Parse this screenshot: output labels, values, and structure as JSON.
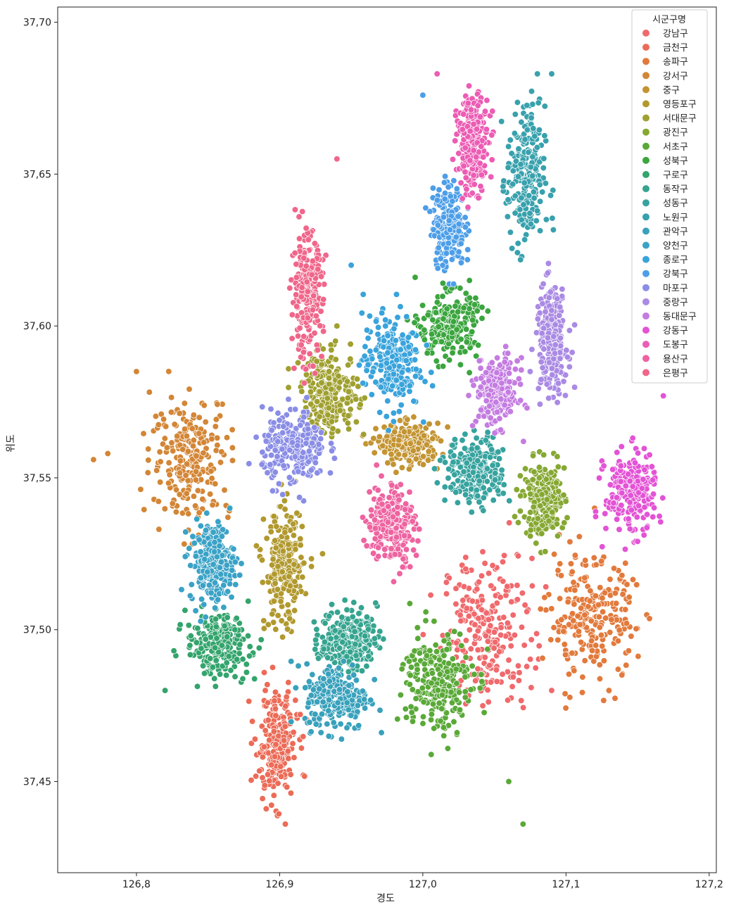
{
  "chart_data": {
    "type": "scatter",
    "title": "",
    "xlabel": "경도",
    "ylabel": "위도",
    "xlim": [
      126.745,
      127.205
    ],
    "ylim": [
      37.42,
      37.705
    ],
    "x_ticks": [
      126.8,
      126.9,
      127.0,
      127.1,
      127.2
    ],
    "x_tick_labels": [
      "126,8",
      "126,9",
      "127,0",
      "127,1",
      "127,2"
    ],
    "y_ticks": [
      37.45,
      37.5,
      37.55,
      37.6,
      37.65,
      37.7
    ],
    "y_tick_labels": [
      "37,45",
      "37,50",
      "37,55",
      "37,60",
      "37,65",
      "37,70"
    ],
    "grid": false,
    "legend": {
      "title": "시군구명",
      "placement": "top-right"
    },
    "series": [
      {
        "name": "강남구",
        "color": "#f0696c",
        "center": [
          127.045,
          37.5
        ],
        "spread": [
          0.028,
          0.022
        ],
        "points": [
          [
            127.03,
            37.52
          ],
          [
            127.06,
            37.49
          ],
          [
            127.09,
            37.48
          ]
        ]
      },
      {
        "name": "금천구",
        "color": "#ec6b57",
        "center": [
          126.898,
          37.462
        ],
        "spread": [
          0.013,
          0.016
        ],
        "points": [
          [
            126.904,
            37.436
          ],
          [
            126.89,
            37.48
          ]
        ]
      },
      {
        "name": "송파구",
        "color": "#e27a3c",
        "center": [
          127.118,
          37.503
        ],
        "spread": [
          0.028,
          0.018
        ],
        "points": [
          [
            127.12,
            37.54
          ],
          [
            127.13,
            37.48
          ]
        ]
      },
      {
        "name": "강서구",
        "color": "#d38636",
        "center": [
          126.838,
          37.557
        ],
        "spread": [
          0.025,
          0.018
        ],
        "points": [
          [
            126.77,
            37.556
          ],
          [
            126.78,
            37.558
          ],
          [
            126.8,
            37.585
          ]
        ]
      },
      {
        "name": "중구",
        "color": "#c39432",
        "center": [
          126.99,
          37.561
        ],
        "spread": [
          0.02,
          0.006
        ],
        "points": []
      },
      {
        "name": "영등포구",
        "color": "#b1992e",
        "center": [
          126.903,
          37.52
        ],
        "spread": [
          0.012,
          0.018
        ],
        "points": [
          [
            126.93,
            37.525
          ]
        ]
      },
      {
        "name": "서대문구",
        "color": "#9fa02f",
        "center": [
          126.935,
          37.578
        ],
        "spread": [
          0.018,
          0.012
        ],
        "points": [
          [
            126.94,
            37.6
          ]
        ]
      },
      {
        "name": "광진구",
        "color": "#86a833",
        "center": [
          127.085,
          37.543
        ],
        "spread": [
          0.013,
          0.011
        ],
        "points": []
      },
      {
        "name": "서초구",
        "color": "#5aa938",
        "center": [
          127.01,
          37.483
        ],
        "spread": [
          0.022,
          0.016
        ],
        "points": [
          [
            127.07,
            37.436
          ],
          [
            127.06,
            37.45
          ]
        ]
      },
      {
        "name": "성북구",
        "color": "#3ba53e",
        "center": [
          127.018,
          37.6
        ],
        "spread": [
          0.018,
          0.01
        ],
        "points": []
      },
      {
        "name": "구로구",
        "color": "#33a46c",
        "center": [
          126.857,
          37.495
        ],
        "spread": [
          0.02,
          0.009
        ],
        "points": [
          [
            126.82,
            37.48
          ]
        ]
      },
      {
        "name": "동작구",
        "color": "#35a48f",
        "center": [
          126.948,
          37.497
        ],
        "spread": [
          0.018,
          0.009
        ],
        "points": []
      },
      {
        "name": "성동구",
        "color": "#36a39f",
        "center": [
          127.037,
          37.552
        ],
        "spread": [
          0.018,
          0.01
        ],
        "points": []
      },
      {
        "name": "노원구",
        "color": "#38a1ad",
        "center": [
          127.072,
          37.648
        ],
        "spread": [
          0.012,
          0.022
        ],
        "points": [
          [
            127.08,
            37.683
          ],
          [
            127.09,
            37.683
          ]
        ]
      },
      {
        "name": "관악구",
        "color": "#39a1bc",
        "center": [
          126.94,
          37.478
        ],
        "spread": [
          0.02,
          0.01
        ],
        "points": []
      },
      {
        "name": "양천구",
        "color": "#3aa2c6",
        "center": [
          126.853,
          37.522
        ],
        "spread": [
          0.014,
          0.012
        ],
        "points": []
      },
      {
        "name": "종로구",
        "color": "#39a3dc",
        "center": [
          126.978,
          37.588
        ],
        "spread": [
          0.018,
          0.014
        ],
        "points": [
          [
            126.95,
            37.62
          ]
        ]
      },
      {
        "name": "강북구",
        "color": "#4d9ee8",
        "center": [
          127.018,
          37.633
        ],
        "spread": [
          0.01,
          0.012
        ],
        "points": [
          [
            127.0,
            37.676
          ]
        ]
      },
      {
        "name": "마포구",
        "color": "#8a8de6",
        "center": [
          126.91,
          37.56
        ],
        "spread": [
          0.02,
          0.011
        ],
        "points": []
      },
      {
        "name": "중랑구",
        "color": "#aa8ae4",
        "center": [
          127.09,
          37.595
        ],
        "spread": [
          0.01,
          0.016
        ],
        "points": []
      },
      {
        "name": "동대문구",
        "color": "#c47ce1",
        "center": [
          127.052,
          37.578
        ],
        "spread": [
          0.013,
          0.01
        ],
        "points": []
      },
      {
        "name": "강동구",
        "color": "#e353d5",
        "center": [
          127.145,
          37.545
        ],
        "spread": [
          0.016,
          0.012
        ],
        "points": [
          [
            127.168,
            37.577
          ]
        ]
      },
      {
        "name": "도봉구",
        "color": "#ec5cb4",
        "center": [
          127.035,
          37.66
        ],
        "spread": [
          0.01,
          0.014
        ],
        "points": [
          [
            127.01,
            37.683
          ]
        ]
      },
      {
        "name": "용산구",
        "color": "#ee63a0",
        "center": [
          126.978,
          37.535
        ],
        "spread": [
          0.015,
          0.012
        ],
        "points": []
      },
      {
        "name": "은평구",
        "color": "#f0668a",
        "center": [
          126.919,
          37.61
        ],
        "spread": [
          0.01,
          0.018
        ],
        "points": [
          [
            126.94,
            37.655
          ]
        ]
      }
    ]
  }
}
